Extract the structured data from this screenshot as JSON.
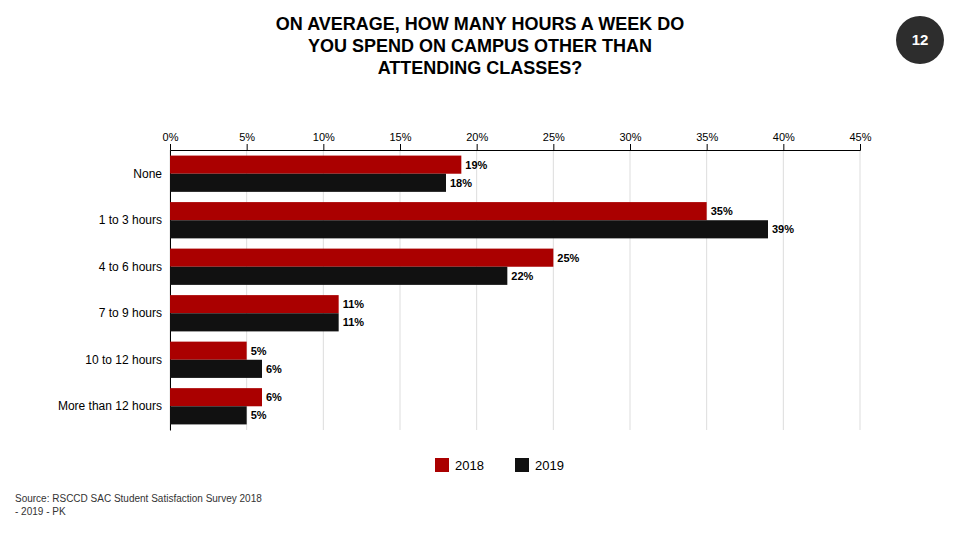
{
  "chart_data": {
    "type": "bar",
    "orientation": "horizontal",
    "title": "ON AVERAGE, HOW MANY HOURS A WEEK DO\nYOU SPEND ON CAMPUS OTHER THAN\nATTENDING CLASSES?",
    "categories": [
      "None",
      "1 to 3 hours",
      "4 to 6 hours",
      "7 to 9 hours",
      "10 to 12 hours",
      "More than 12 hours"
    ],
    "series": [
      {
        "name": "2018",
        "color": "#aa0000",
        "values": [
          19,
          35,
          25,
          11,
          5,
          6
        ],
        "value_labels": [
          "19%",
          "35%",
          "25%",
          "11%",
          "5%",
          "6%"
        ]
      },
      {
        "name": "2019",
        "color": "#111111",
        "values": [
          18,
          39,
          22,
          11,
          6,
          5
        ],
        "value_labels": [
          "18%",
          "39%",
          "22%",
          "11%",
          "6%",
          "5%"
        ]
      }
    ],
    "xlim": [
      0,
      45
    ],
    "xticks": [
      {
        "value": 0,
        "label": "0%"
      },
      {
        "value": 5,
        "label": "5%"
      },
      {
        "value": 10,
        "label": "10%"
      },
      {
        "value": 15,
        "label": "15%"
      },
      {
        "value": 20,
        "label": "20%"
      },
      {
        "value": 25,
        "label": "25%"
      },
      {
        "value": 30,
        "label": "30%"
      },
      {
        "value": 35,
        "label": "35%"
      },
      {
        "value": 40,
        "label": "40%"
      },
      {
        "value": 45,
        "label": "45%"
      }
    ],
    "grid": true,
    "legend": "bottom",
    "data_labels": true,
    "annotations": [
      "Source: RSCCD SAC Student Satisfaction Survey 2018\n- 2019 - PK",
      "12"
    ]
  }
}
